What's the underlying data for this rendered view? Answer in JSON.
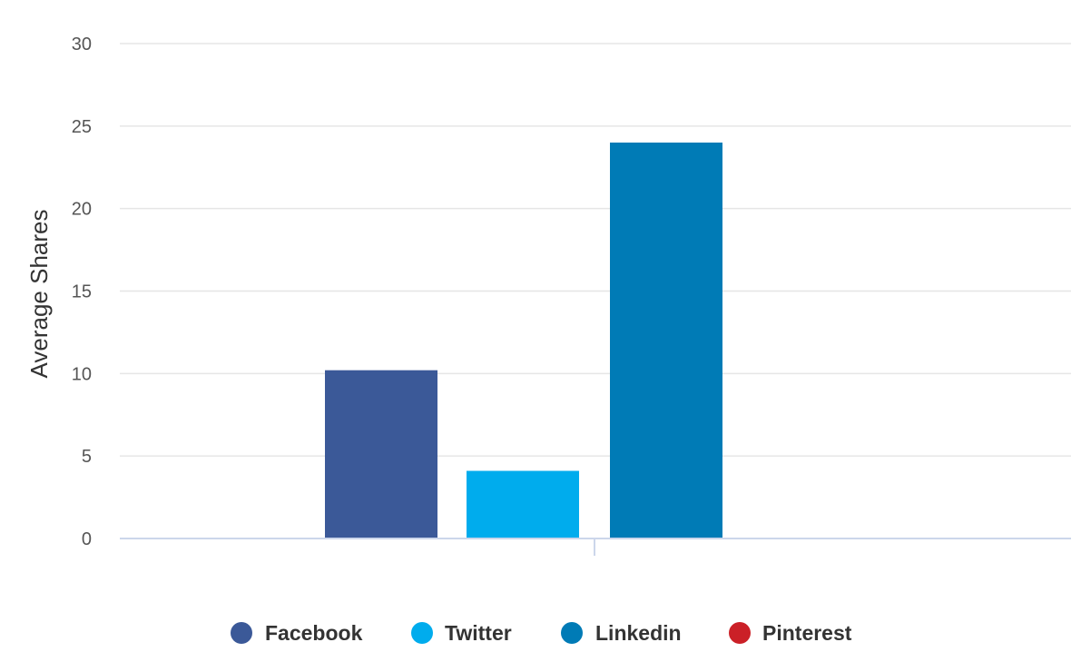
{
  "chart_data": {
    "type": "bar",
    "categories": [
      ""
    ],
    "series": [
      {
        "name": "Facebook",
        "values": [
          10.2
        ],
        "color": "#3b5998"
      },
      {
        "name": "Twitter",
        "values": [
          4.1
        ],
        "color": "#00aced"
      },
      {
        "name": "Linkedin",
        "values": [
          24.0
        ],
        "color": "#007bb6"
      },
      {
        "name": "Pinterest",
        "values": [
          0
        ],
        "color": "#cb2027"
      }
    ],
    "title": "",
    "xlabel": "",
    "ylabel": "Average Shares",
    "ylim": [
      0,
      30
    ],
    "yticks": [
      "0",
      "5",
      "10",
      "15",
      "20",
      "25",
      "30"
    ],
    "grid": true,
    "legend_position": "bottom"
  }
}
